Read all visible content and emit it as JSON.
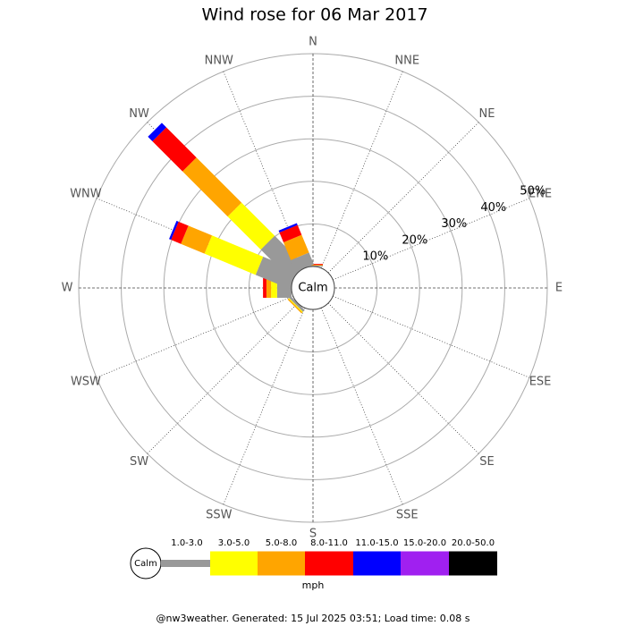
{
  "chart_data": {
    "type": "windrose",
    "title": "Wind rose for 06 Mar 2017",
    "categories": [
      "N",
      "NNE",
      "NE",
      "ENE",
      "E",
      "ESE",
      "SE",
      "SSE",
      "S",
      "SSW",
      "SW",
      "WSW",
      "W",
      "WNW",
      "NW",
      "NNW"
    ],
    "series": [
      {
        "name": "1.0-3.0",
        "color": "#999999",
        "values": [
          0.2,
          0,
          0,
          0,
          0,
          0,
          0,
          0,
          0,
          0,
          0.6,
          0,
          3.4,
          8.6,
          10,
          3
        ]
      },
      {
        "name": "3.0-5.0",
        "color": "#ffff00",
        "values": [
          0,
          0,
          0,
          0,
          0,
          0,
          0,
          0,
          0,
          0,
          0.2,
          0,
          1.4,
          13,
          11,
          0
        ]
      },
      {
        "name": "5.0-8.0",
        "color": "#ffa500",
        "values": [
          0.2,
          0,
          0,
          0,
          0,
          0,
          0,
          0,
          0,
          0,
          0.3,
          0,
          1.1,
          6,
          15,
          4.5
        ]
      },
      {
        "name": "8.0-11.0",
        "color": "#ff0000",
        "values": [
          0.2,
          0,
          0,
          0,
          0,
          0,
          0,
          0,
          0,
          0,
          0,
          0,
          0.8,
          2.5,
          10,
          2.5
        ]
      },
      {
        "name": "11.0-15.0",
        "color": "#0000ff",
        "values": [
          0,
          0,
          0,
          0,
          0,
          0,
          0,
          0,
          0,
          0,
          0,
          0,
          0,
          0.5,
          1.5,
          0.5
        ]
      },
      {
        "name": "15.0-20.0",
        "color": "#a020f0",
        "values": [
          0,
          0,
          0,
          0,
          0,
          0,
          0,
          0,
          0,
          0,
          0,
          0,
          0,
          0,
          0,
          0
        ]
      },
      {
        "name": "20.0-50.0",
        "color": "#000000",
        "values": [
          0,
          0,
          0,
          0,
          0,
          0,
          0,
          0,
          0,
          0,
          0,
          0,
          0,
          0,
          0,
          0
        ]
      }
    ],
    "rlim": [
      0,
      50
    ],
    "rticks": [
      {
        "value": 10,
        "label": "10%"
      },
      {
        "value": 20,
        "label": "20%"
      },
      {
        "value": 30,
        "label": "30%"
      },
      {
        "value": 40,
        "label": "40%"
      },
      {
        "value": 50,
        "label": "50%"
      }
    ],
    "calm_label": "Calm",
    "legend_unit": "mph",
    "footer": "@nw3weather.  Generated: 15 Jul 2025 03:51; Load time: 0.08 s"
  }
}
